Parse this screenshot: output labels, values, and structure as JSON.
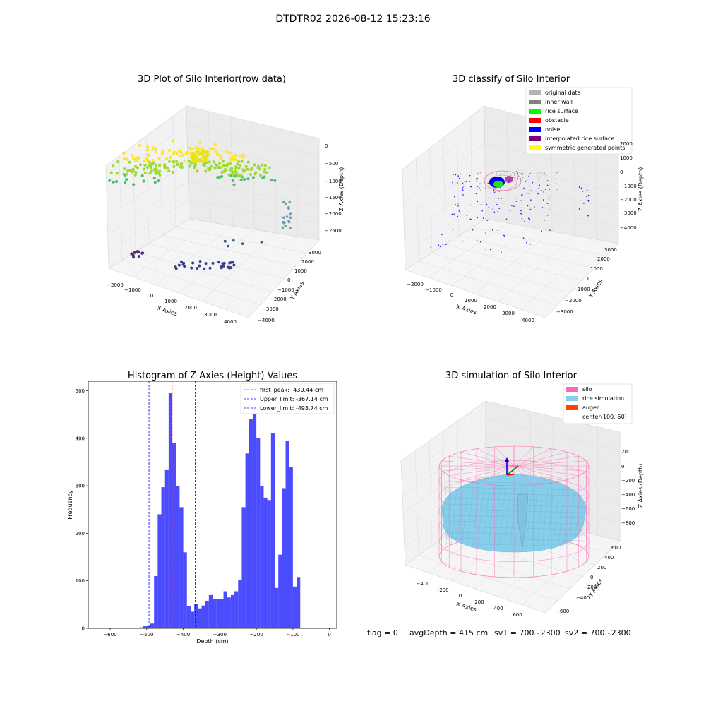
{
  "suptitle": "DTDTR02 2026-08-12 15:23:16",
  "chart_data": [
    {
      "type": "scatter",
      "projection": "3d",
      "title": "3D Plot of Silo Interior(row data)",
      "xlabel": "X Axies",
      "ylabel": "Y Axies",
      "zlabel": "Z Axies (Depth)",
      "xticks": [
        "−2000",
        "−1000",
        "0",
        "1000",
        "2000",
        "3000",
        "4000"
      ],
      "yticks": [
        "−4000",
        "−3000",
        "−2000",
        "−1000",
        "0",
        "1000",
        "2000",
        "3000"
      ],
      "zticks": [
        "−2500",
        "−2000",
        "−1500",
        "−1000",
        "−500",
        "0"
      ],
      "colormap": "viridis",
      "grid": true
    },
    {
      "type": "scatter",
      "projection": "3d",
      "title": "3D classify of Silo Interior",
      "xlabel": "X Axies",
      "ylabel": "Y Axies",
      "zlabel": "Z Axies (Depth)",
      "xticks": [
        "−2000",
        "−1000",
        "0",
        "1000",
        "2000",
        "3000",
        "4000"
      ],
      "yticks": [
        "−3000",
        "−2000",
        "−1000",
        "0",
        "1000",
        "2000",
        "3000"
      ],
      "zticks": [
        "−4000",
        "−3000",
        "−2000",
        "−1000",
        "0",
        "1000",
        "2000"
      ],
      "legend": [
        {
          "name": "original data",
          "color": "#b3b3b3"
        },
        {
          "name": "inner wall",
          "color": "#808080"
        },
        {
          "name": "rice surface",
          "color": "#00ff00"
        },
        {
          "name": "obstacle",
          "color": "#ff0000"
        },
        {
          "name": "noise",
          "color": "#0000ff"
        },
        {
          "name": "interpolated rice surface",
          "color": "#800080"
        },
        {
          "name": "symmetric generated points",
          "color": "#ffff00"
        }
      ],
      "legend_position": "top-right",
      "grid": true
    },
    {
      "type": "bar",
      "title": "Histogram of Z-Axies (Height) Values",
      "xlabel": "Depth (cm)",
      "ylabel": "Frequency",
      "xlim": [
        -660,
        20
      ],
      "ylim": [
        0,
        520
      ],
      "xticks": [
        -600,
        -500,
        -400,
        -300,
        -200,
        -100,
        0
      ],
      "yticks": [
        0,
        100,
        200,
        300,
        400,
        500
      ],
      "bin_width": 10,
      "bins_start": [
        -640,
        -630,
        -620,
        -610,
        -600,
        -590,
        -580,
        -570,
        -560,
        -550,
        -540,
        -530,
        -520,
        -510,
        -500,
        -490,
        -480,
        -470,
        -460,
        -450,
        -440,
        -430,
        -420,
        -410,
        -400,
        -390,
        -380,
        -370,
        -360,
        -350,
        -340,
        -330,
        -320,
        -310,
        -300,
        -290,
        -280,
        -270,
        -260,
        -250,
        -240,
        -230,
        -220,
        -210,
        -200,
        -190,
        -180,
        -170,
        -160,
        -150,
        -140,
        -130,
        -120,
        -110,
        -100,
        -90,
        -80,
        -70,
        -60,
        -50,
        -40,
        -30,
        -20,
        -10
      ],
      "values": [
        1,
        0,
        0,
        0,
        1,
        1,
        0,
        0,
        1,
        1,
        1,
        1,
        2,
        5,
        5,
        10,
        110,
        240,
        297,
        333,
        495,
        390,
        300,
        255,
        160,
        47,
        35,
        52,
        42,
        48,
        58,
        70,
        62,
        62,
        62,
        78,
        65,
        70,
        78,
        102,
        255,
        368,
        440,
        452,
        400,
        300,
        275,
        270,
        410,
        85,
        155,
        295,
        395,
        340,
        88,
        108,
        0,
        0,
        0,
        0,
        0,
        0,
        0,
        0
      ],
      "bar_color": "#0000ff",
      "vlines": [
        {
          "label": "first_peak: -430.44 cm",
          "x": -430.44,
          "color": "#ff0000"
        },
        {
          "label": "Upper_limit: -367.14 cm",
          "x": -367.14,
          "color": "#0000ff"
        },
        {
          "label": "Lower_limit: -493.74 cm",
          "x": -493.74,
          "color": "#0000ff"
        }
      ],
      "legend_position": "top-right"
    },
    {
      "type": "surface",
      "projection": "3d",
      "title": "3D simulation of Silo Interior",
      "xlabel": "X Axies",
      "ylabel": "Y Axies",
      "zlabel": "Z Axies (Depth)",
      "xticks": [
        "−400",
        "−200",
        "0",
        "200",
        "400",
        "600"
      ],
      "yticks": [
        "−600",
        "−400",
        "−200",
        "0",
        "200",
        "400",
        "600"
      ],
      "zticks": [
        "−800",
        "−600",
        "−400",
        "−200",
        "0",
        "200"
      ],
      "legend": [
        {
          "name": "silo",
          "color": "#ff69b4"
        },
        {
          "name": "rice simulation",
          "color": "#87ceeb"
        },
        {
          "name": "auger",
          "color": "#ff4500"
        },
        {
          "name": "center(100,-50)",
          "color": ""
        }
      ],
      "legend_position": "top-right",
      "grid": true
    }
  ],
  "footer": {
    "flag": "flag = 0",
    "avg": "avgDepth = 415 cm",
    "sv1": "sv1 = 700~2300",
    "sv2": "sv2 = 700~2300"
  }
}
